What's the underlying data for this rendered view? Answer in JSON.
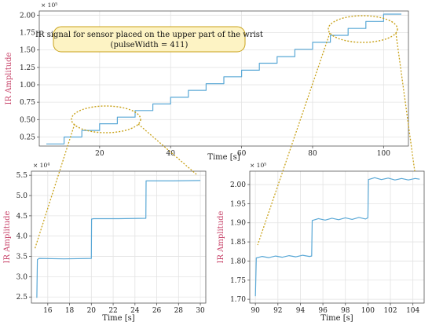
{
  "colors": {
    "line": "#5aa8d6",
    "grid": "#e3e3e3",
    "ylabel": "#c8446a",
    "guide": "#c9a21a",
    "callout_bg": "#fdf3c4",
    "callout_border": "#c9a21a"
  },
  "annotation": {
    "line1": "IR signal for sensor placed on the upper part of the wrist",
    "line2": "(pulseWidth = 411)"
  },
  "chart_data": [
    {
      "id": "main",
      "type": "line",
      "xlabel": "Time [s]",
      "ylabel": "IR Amplitude",
      "y_exponent": "× 10⁵",
      "xlim": [
        3,
        107
      ],
      "ylim": [
        0.12,
        2.06
      ],
      "xticks": [
        20,
        40,
        60,
        80,
        100
      ],
      "yticks": [
        0.25,
        0.5,
        0.75,
        1.0,
        1.25,
        1.5,
        1.75,
        2.0
      ],
      "xtick_labels": [
        "20",
        "40",
        "60",
        "80",
        "100"
      ],
      "ytick_labels": [
        "0.25",
        "0.50",
        "0.75",
        "1.00",
        "1.25",
        "1.50",
        "1.75",
        "2.00"
      ],
      "series": [
        {
          "x": [
            5,
            10,
            10,
            15,
            15,
            20,
            20,
            25,
            25,
            30,
            30,
            35,
            35,
            40,
            40,
            45,
            45,
            50,
            50,
            55,
            55,
            60,
            60,
            65,
            65,
            70,
            70,
            75,
            75,
            80,
            80,
            85,
            85,
            90,
            90,
            95,
            95,
            100,
            100,
            105
          ],
          "values": [
            0.15,
            0.15,
            0.25,
            0.25,
            0.345,
            0.345,
            0.44,
            0.44,
            0.535,
            0.535,
            0.63,
            0.63,
            0.725,
            0.725,
            0.82,
            0.82,
            0.92,
            0.92,
            1.015,
            1.015,
            1.115,
            1.115,
            1.21,
            1.21,
            1.31,
            1.31,
            1.405,
            1.405,
            1.51,
            1.51,
            1.61,
            1.61,
            1.71,
            1.71,
            1.81,
            1.81,
            1.91,
            1.91,
            2.015,
            2.015
          ]
        }
      ]
    },
    {
      "id": "zoom-left",
      "type": "line",
      "xlabel": "Time [s]",
      "ylabel": "IR Amplitude",
      "y_exponent": "× 10⁴",
      "xlim": [
        14.5,
        30.5
      ],
      "ylim": [
        2.35,
        5.6
      ],
      "xticks": [
        16,
        18,
        20,
        22,
        24,
        26,
        28,
        30
      ],
      "yticks": [
        2.5,
        3.0,
        3.5,
        4.0,
        4.5,
        5.0,
        5.5
      ],
      "xtick_labels": [
        "16",
        "18",
        "20",
        "22",
        "24",
        "26",
        "28",
        "30"
      ],
      "ytick_labels": [
        "2.5",
        "3.0",
        "3.5",
        "4.0",
        "4.5",
        "5.0",
        "5.5"
      ],
      "series": [
        {
          "x": [
            15.0,
            15.05,
            15.2,
            17.5,
            20.0,
            20.02,
            20.2,
            22.5,
            25.0,
            25.02,
            25.2,
            27.5,
            30.0
          ],
          "values": [
            2.48,
            3.42,
            3.45,
            3.44,
            3.45,
            4.42,
            4.43,
            4.43,
            4.44,
            5.36,
            5.36,
            5.36,
            5.37
          ]
        }
      ]
    },
    {
      "id": "zoom-right",
      "type": "line",
      "xlabel": "Time [s]",
      "ylabel": "IR Amplitude",
      "y_exponent": "× 10⁵",
      "xlim": [
        89.5,
        105
      ],
      "ylim": [
        1.69,
        2.035
      ],
      "xticks": [
        90,
        92,
        94,
        96,
        98,
        100,
        102,
        104
      ],
      "yticks": [
        1.7,
        1.75,
        1.8,
        1.85,
        1.9,
        1.95,
        2.0
      ],
      "xtick_labels": [
        "90",
        "92",
        "94",
        "96",
        "98",
        "100",
        "102",
        "104"
      ],
      "ytick_labels": [
        "1.70",
        "1.75",
        "1.80",
        "1.85",
        "1.90",
        "1.95",
        "2.00"
      ],
      "series": [
        {
          "x": [
            90.0,
            90.08,
            90.6,
            91.2,
            91.8,
            92.4,
            93.0,
            93.6,
            94.2,
            94.8,
            95.0,
            95.05,
            95.6,
            96.2,
            96.8,
            97.4,
            98.0,
            98.6,
            99.2,
            99.8,
            100.0,
            100.05,
            100.6,
            101.2,
            101.8,
            102.4,
            103.0,
            103.6,
            104.2,
            104.6
          ],
          "values": [
            1.708,
            1.808,
            1.812,
            1.809,
            1.813,
            1.81,
            1.814,
            1.811,
            1.815,
            1.812,
            1.813,
            1.906,
            1.911,
            1.907,
            1.912,
            1.908,
            1.913,
            1.909,
            1.914,
            1.91,
            1.913,
            2.013,
            2.018,
            2.013,
            2.017,
            2.012,
            2.016,
            2.012,
            2.016,
            2.014
          ]
        }
      ]
    }
  ]
}
